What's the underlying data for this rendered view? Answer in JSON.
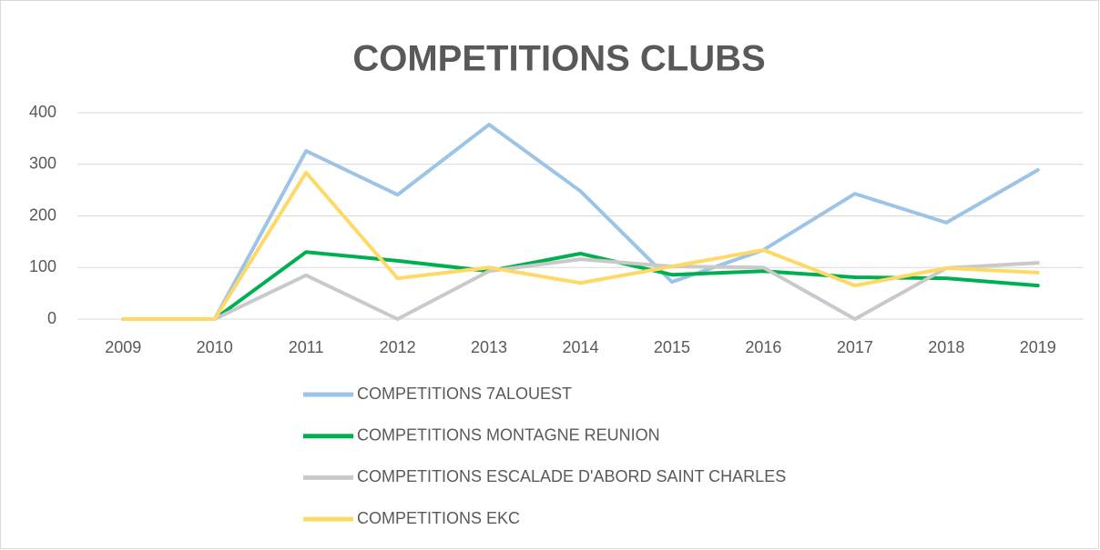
{
  "chart_data": {
    "type": "line",
    "title": "COMPETITIONS CLUBS",
    "categories": [
      "2009",
      "2010",
      "2011",
      "2012",
      "2013",
      "2014",
      "2015",
      "2016",
      "2017",
      "2018",
      "2019"
    ],
    "series": [
      {
        "name": "COMPETITIONS 7ALOUEST",
        "color": "#9dc3e6",
        "values": [
          0,
          0,
          326,
          241,
          377,
          248,
          72,
          134,
          243,
          187,
          289
        ]
      },
      {
        "name": "COMPETITIONS MONTAGNE REUNION",
        "color": "#00b050",
        "values": [
          0,
          0,
          130,
          113,
          93,
          127,
          86,
          93,
          81,
          79,
          65
        ]
      },
      {
        "name": "COMPETITIONS ESCALADE D'ABORD SAINT CHARLES",
        "color": "#c9c9c9",
        "values": [
          0,
          0,
          85,
          0,
          93,
          116,
          102,
          100,
          0,
          99,
          109
        ]
      },
      {
        "name": "COMPETITIONS EKC",
        "color": "#ffd966",
        "values": [
          0,
          0,
          284,
          79,
          100,
          70,
          102,
          134,
          65,
          99,
          90
        ]
      }
    ],
    "ylim": [
      0,
      400
    ],
    "yticks": [
      0,
      100,
      200,
      300,
      400
    ],
    "grid": true,
    "legend": "bottom"
  }
}
